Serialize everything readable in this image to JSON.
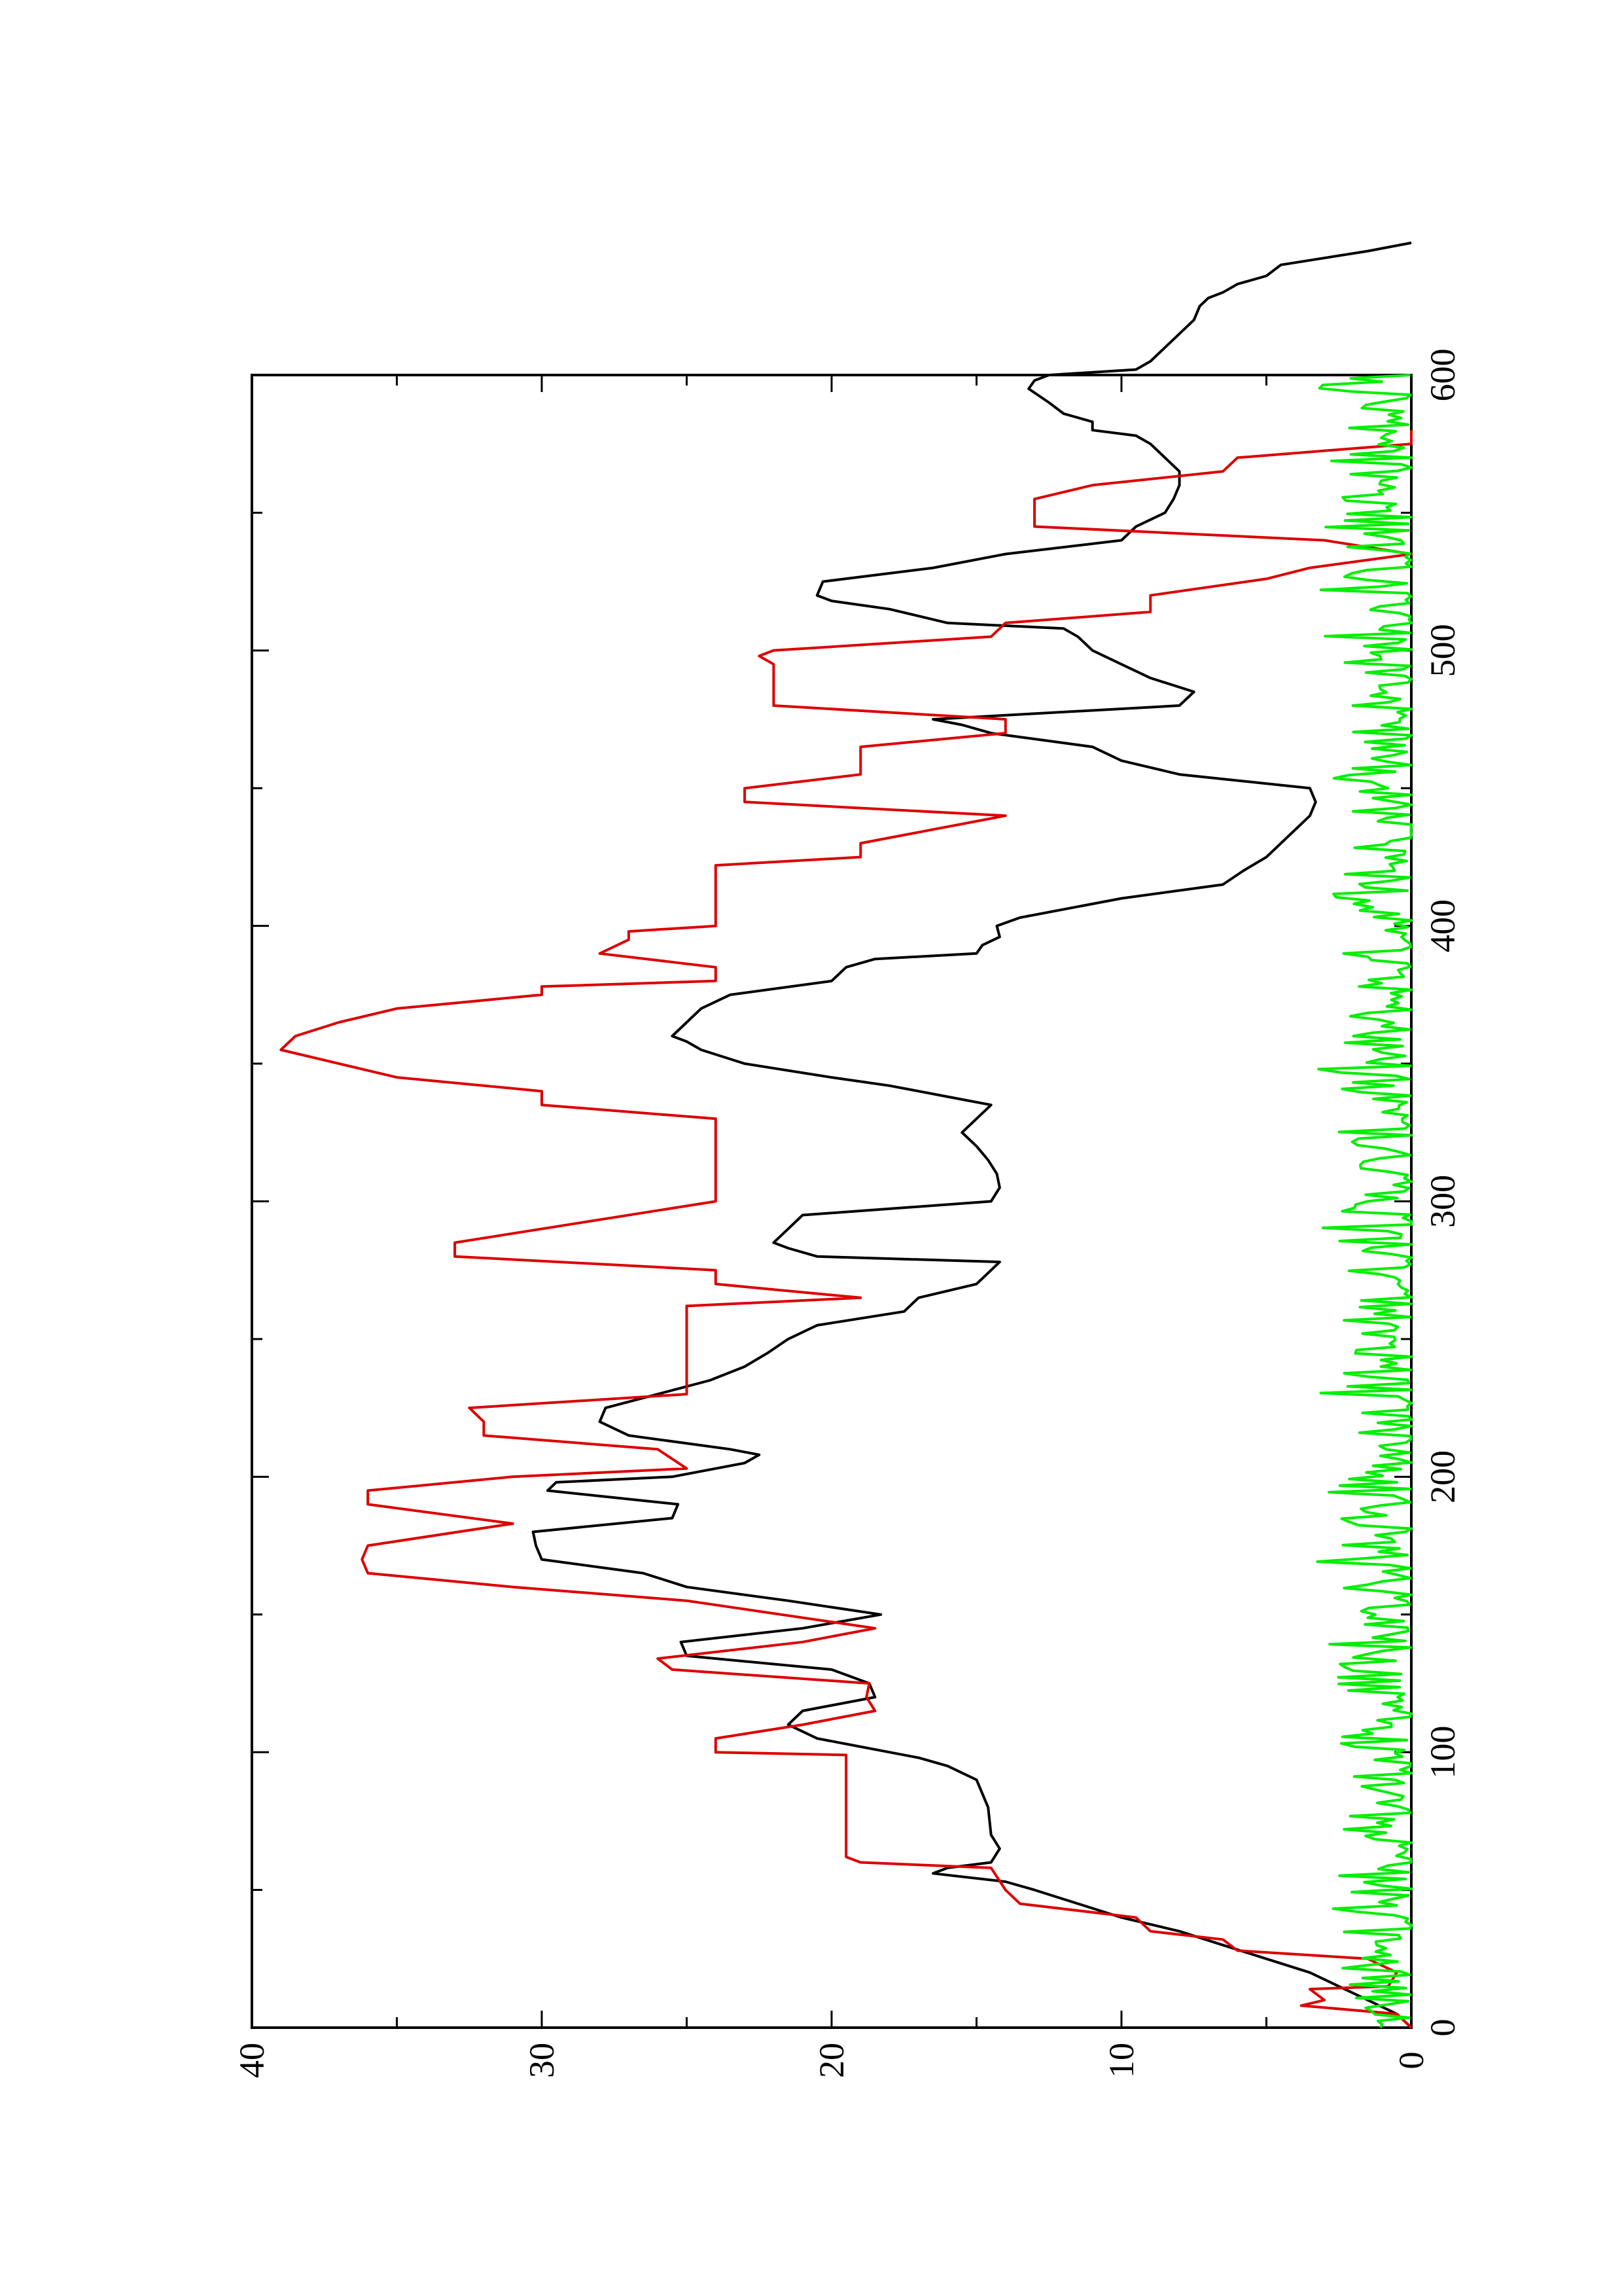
{
  "chart_data": {
    "type": "line",
    "title": "",
    "xlabel": "",
    "ylabel": "",
    "xlim": [
      0,
      600
    ],
    "ylim": [
      0,
      40
    ],
    "x_ticks": [
      0,
      100,
      200,
      300,
      400,
      500,
      600
    ],
    "y_ticks": [
      0,
      10,
      20,
      30,
      40
    ],
    "x_tick_labels": [
      "0",
      "100",
      "200",
      "300",
      "400",
      "500",
      "600"
    ],
    "y_tick_labels": [
      "0",
      "10",
      "20",
      "30",
      "40"
    ],
    "grid": false,
    "legend": "none",
    "orientation": "rotated 90 degrees counter-clockwise",
    "series": [
      {
        "color": "#000000",
        "style": "smooth",
        "points": [
          [
            0,
            0
          ],
          [
            5,
            0.5
          ],
          [
            10,
            1.5
          ],
          [
            15,
            2.5
          ],
          [
            20,
            3.5
          ],
          [
            25,
            5
          ],
          [
            30,
            6.5
          ],
          [
            35,
            8
          ],
          [
            40,
            10
          ],
          [
            45,
            11.5
          ],
          [
            50,
            13
          ],
          [
            53,
            14
          ],
          [
            56,
            16.5
          ],
          [
            58,
            16
          ],
          [
            60,
            14.5
          ],
          [
            65,
            14.2
          ],
          [
            70,
            14.5
          ],
          [
            80,
            14.6
          ],
          [
            90,
            15
          ],
          [
            95,
            16
          ],
          [
            98,
            17
          ],
          [
            100,
            18
          ],
          [
            105,
            20.5
          ],
          [
            110,
            21.5
          ],
          [
            115,
            21
          ],
          [
            120,
            18.5
          ],
          [
            125,
            18.7
          ],
          [
            130,
            20
          ],
          [
            135,
            25
          ],
          [
            140,
            25.2
          ],
          [
            145,
            21
          ],
          [
            150,
            18.3
          ],
          [
            155,
            21.5
          ],
          [
            160,
            25
          ],
          [
            165,
            26.5
          ],
          [
            170,
            30
          ],
          [
            175,
            30.2
          ],
          [
            180,
            30.3
          ],
          [
            185,
            25.5
          ],
          [
            190,
            25.3
          ],
          [
            195,
            29.8
          ],
          [
            198,
            29.5
          ],
          [
            200,
            25.5
          ],
          [
            205,
            23
          ],
          [
            208,
            22.5
          ],
          [
            210,
            23.5
          ],
          [
            215,
            27
          ],
          [
            220,
            28
          ],
          [
            225,
            27.8
          ],
          [
            230,
            26
          ],
          [
            235,
            24.2
          ],
          [
            240,
            23
          ],
          [
            245,
            22.2
          ],
          [
            250,
            21.5
          ],
          [
            255,
            20.5
          ],
          [
            260,
            17.5
          ],
          [
            265,
            17
          ],
          [
            270,
            15
          ],
          [
            275,
            14.5
          ],
          [
            278,
            14.2
          ],
          [
            280,
            20.5
          ],
          [
            283,
            21.5
          ],
          [
            285,
            22
          ],
          [
            290,
            21.5
          ],
          [
            295,
            21
          ],
          [
            300,
            14.5
          ],
          [
            305,
            14.2
          ],
          [
            310,
            14.3
          ],
          [
            315,
            14.6
          ],
          [
            320,
            15
          ],
          [
            325,
            15.5
          ],
          [
            330,
            15
          ],
          [
            335,
            14.5
          ],
          [
            338,
            16
          ],
          [
            342,
            18
          ],
          [
            345,
            20
          ],
          [
            350,
            23
          ],
          [
            355,
            24.5
          ],
          [
            358,
            25
          ],
          [
            360,
            25.5
          ],
          [
            365,
            25
          ],
          [
            370,
            24.5
          ],
          [
            375,
            23.5
          ],
          [
            380,
            20
          ],
          [
            385,
            19.5
          ],
          [
            388,
            18.5
          ],
          [
            390,
            15
          ],
          [
            393,
            14.8
          ],
          [
            396,
            14.2
          ],
          [
            400,
            14.3
          ],
          [
            403,
            13.5
          ],
          [
            410,
            10
          ],
          [
            415,
            6.5
          ],
          [
            420,
            5.8
          ],
          [
            425,
            5
          ],
          [
            430,
            4.5
          ],
          [
            435,
            4
          ],
          [
            440,
            3.5
          ],
          [
            445,
            3.3
          ],
          [
            450,
            3.5
          ],
          [
            455,
            8
          ],
          [
            460,
            10
          ],
          [
            465,
            11
          ],
          [
            470,
            14.5
          ],
          [
            473,
            15.5
          ],
          [
            475,
            16.5
          ],
          [
            480,
            8
          ],
          [
            485,
            7.5
          ],
          [
            490,
            9
          ],
          [
            495,
            10
          ],
          [
            500,
            11
          ],
          [
            505,
            11.5
          ],
          [
            508,
            12
          ],
          [
            510,
            16
          ],
          [
            515,
            18
          ],
          [
            518,
            20
          ],
          [
            520,
            20.5
          ],
          [
            525,
            20.3
          ],
          [
            530,
            16.5
          ],
          [
            535,
            14
          ],
          [
            540,
            10
          ],
          [
            545,
            9.5
          ],
          [
            550,
            8.5
          ],
          [
            555,
            8.2
          ],
          [
            560,
            8
          ],
          [
            565,
            8
          ],
          [
            570,
            8.5
          ],
          [
            575,
            9
          ],
          [
            578,
            9.5
          ],
          [
            580,
            11
          ],
          [
            583,
            11
          ],
          [
            586,
            12
          ],
          [
            590,
            12.5
          ],
          [
            595,
            13.2
          ],
          [
            598,
            13
          ],
          [
            600,
            12.5
          ],
          [
            602,
            9.5
          ],
          [
            605,
            9
          ],
          [
            610,
            8.5
          ],
          [
            615,
            8
          ],
          [
            620,
            7.5
          ],
          [
            625,
            7.3
          ],
          [
            628,
            7
          ],
          [
            630,
            6.5
          ],
          [
            633,
            6
          ],
          [
            636,
            5
          ],
          [
            640,
            4.5
          ],
          [
            645,
            1.5
          ],
          [
            648,
            0
          ]
        ]
      },
      {
        "color": "#dd0000",
        "style": "step",
        "points": [
          [
            0,
            0
          ],
          [
            5,
            0.5
          ],
          [
            8,
            3.8
          ],
          [
            10,
            3
          ],
          [
            14,
            3.5
          ],
          [
            15,
            0.8
          ],
          [
            20,
            0.5
          ],
          [
            25,
            1.5
          ],
          [
            28,
            6
          ],
          [
            32,
            6.5
          ],
          [
            35,
            9
          ],
          [
            40,
            9.5
          ],
          [
            45,
            13.5
          ],
          [
            50,
            14
          ],
          [
            58,
            14.5
          ],
          [
            60,
            19
          ],
          [
            62,
            19.5
          ],
          [
            99,
            19.5
          ],
          [
            100,
            24
          ],
          [
            105,
            24
          ],
          [
            110,
            21
          ],
          [
            115,
            18.5
          ],
          [
            120,
            18.8
          ],
          [
            125,
            18.7
          ],
          [
            130,
            25.5
          ],
          [
            134,
            26
          ],
          [
            140,
            21
          ],
          [
            145,
            18.5
          ],
          [
            155,
            25
          ],
          [
            160,
            31
          ],
          [
            165,
            36
          ],
          [
            170,
            36.2
          ],
          [
            175,
            36
          ],
          [
            183,
            31
          ],
          [
            190,
            36
          ],
          [
            195,
            36
          ],
          [
            200,
            31
          ],
          [
            203,
            25
          ],
          [
            210,
            26
          ],
          [
            215,
            32
          ],
          [
            220,
            32
          ],
          [
            225,
            32.5
          ],
          [
            230,
            25
          ],
          [
            235,
            25
          ],
          [
            262,
            25
          ],
          [
            265,
            19
          ],
          [
            270,
            24
          ],
          [
            275,
            24
          ],
          [
            280,
            33
          ],
          [
            285,
            33
          ],
          [
            300,
            24
          ],
          [
            330,
            24
          ],
          [
            335,
            30
          ],
          [
            340,
            30
          ],
          [
            345,
            35
          ],
          [
            350,
            37
          ],
          [
            355,
            39
          ],
          [
            360,
            38.5
          ],
          [
            365,
            37
          ],
          [
            370,
            35
          ],
          [
            375,
            30
          ],
          [
            378,
            30
          ],
          [
            380,
            24
          ],
          [
            385,
            24
          ],
          [
            390,
            28
          ],
          [
            395,
            27
          ],
          [
            398,
            27
          ],
          [
            400,
            24
          ],
          [
            405,
            24
          ],
          [
            422,
            24
          ],
          [
            425,
            19
          ],
          [
            430,
            19
          ],
          [
            440,
            14
          ],
          [
            445,
            23
          ],
          [
            450,
            23
          ],
          [
            455,
            19
          ],
          [
            460,
            19
          ],
          [
            465,
            19
          ],
          [
            470,
            14
          ],
          [
            475,
            14
          ],
          [
            480,
            22
          ],
          [
            485,
            22
          ],
          [
            490,
            22
          ],
          [
            495,
            22
          ],
          [
            498,
            22.5
          ],
          [
            500,
            22
          ],
          [
            505,
            14.5
          ],
          [
            510,
            14
          ],
          [
            514,
            9
          ],
          [
            520,
            9
          ],
          [
            526,
            5
          ],
          [
            530,
            3.5
          ],
          [
            535,
            0
          ],
          [
            540,
            3
          ],
          [
            545,
            13
          ],
          [
            550,
            13
          ],
          [
            555,
            13
          ],
          [
            560,
            11
          ],
          [
            565,
            6.5
          ],
          [
            570,
            6
          ],
          [
            575,
            0
          ],
          [
            580,
            0
          ]
        ]
      },
      {
        "color": "#00ee00",
        "style": "noise",
        "amplitude": 2.5,
        "points": []
      }
    ]
  }
}
